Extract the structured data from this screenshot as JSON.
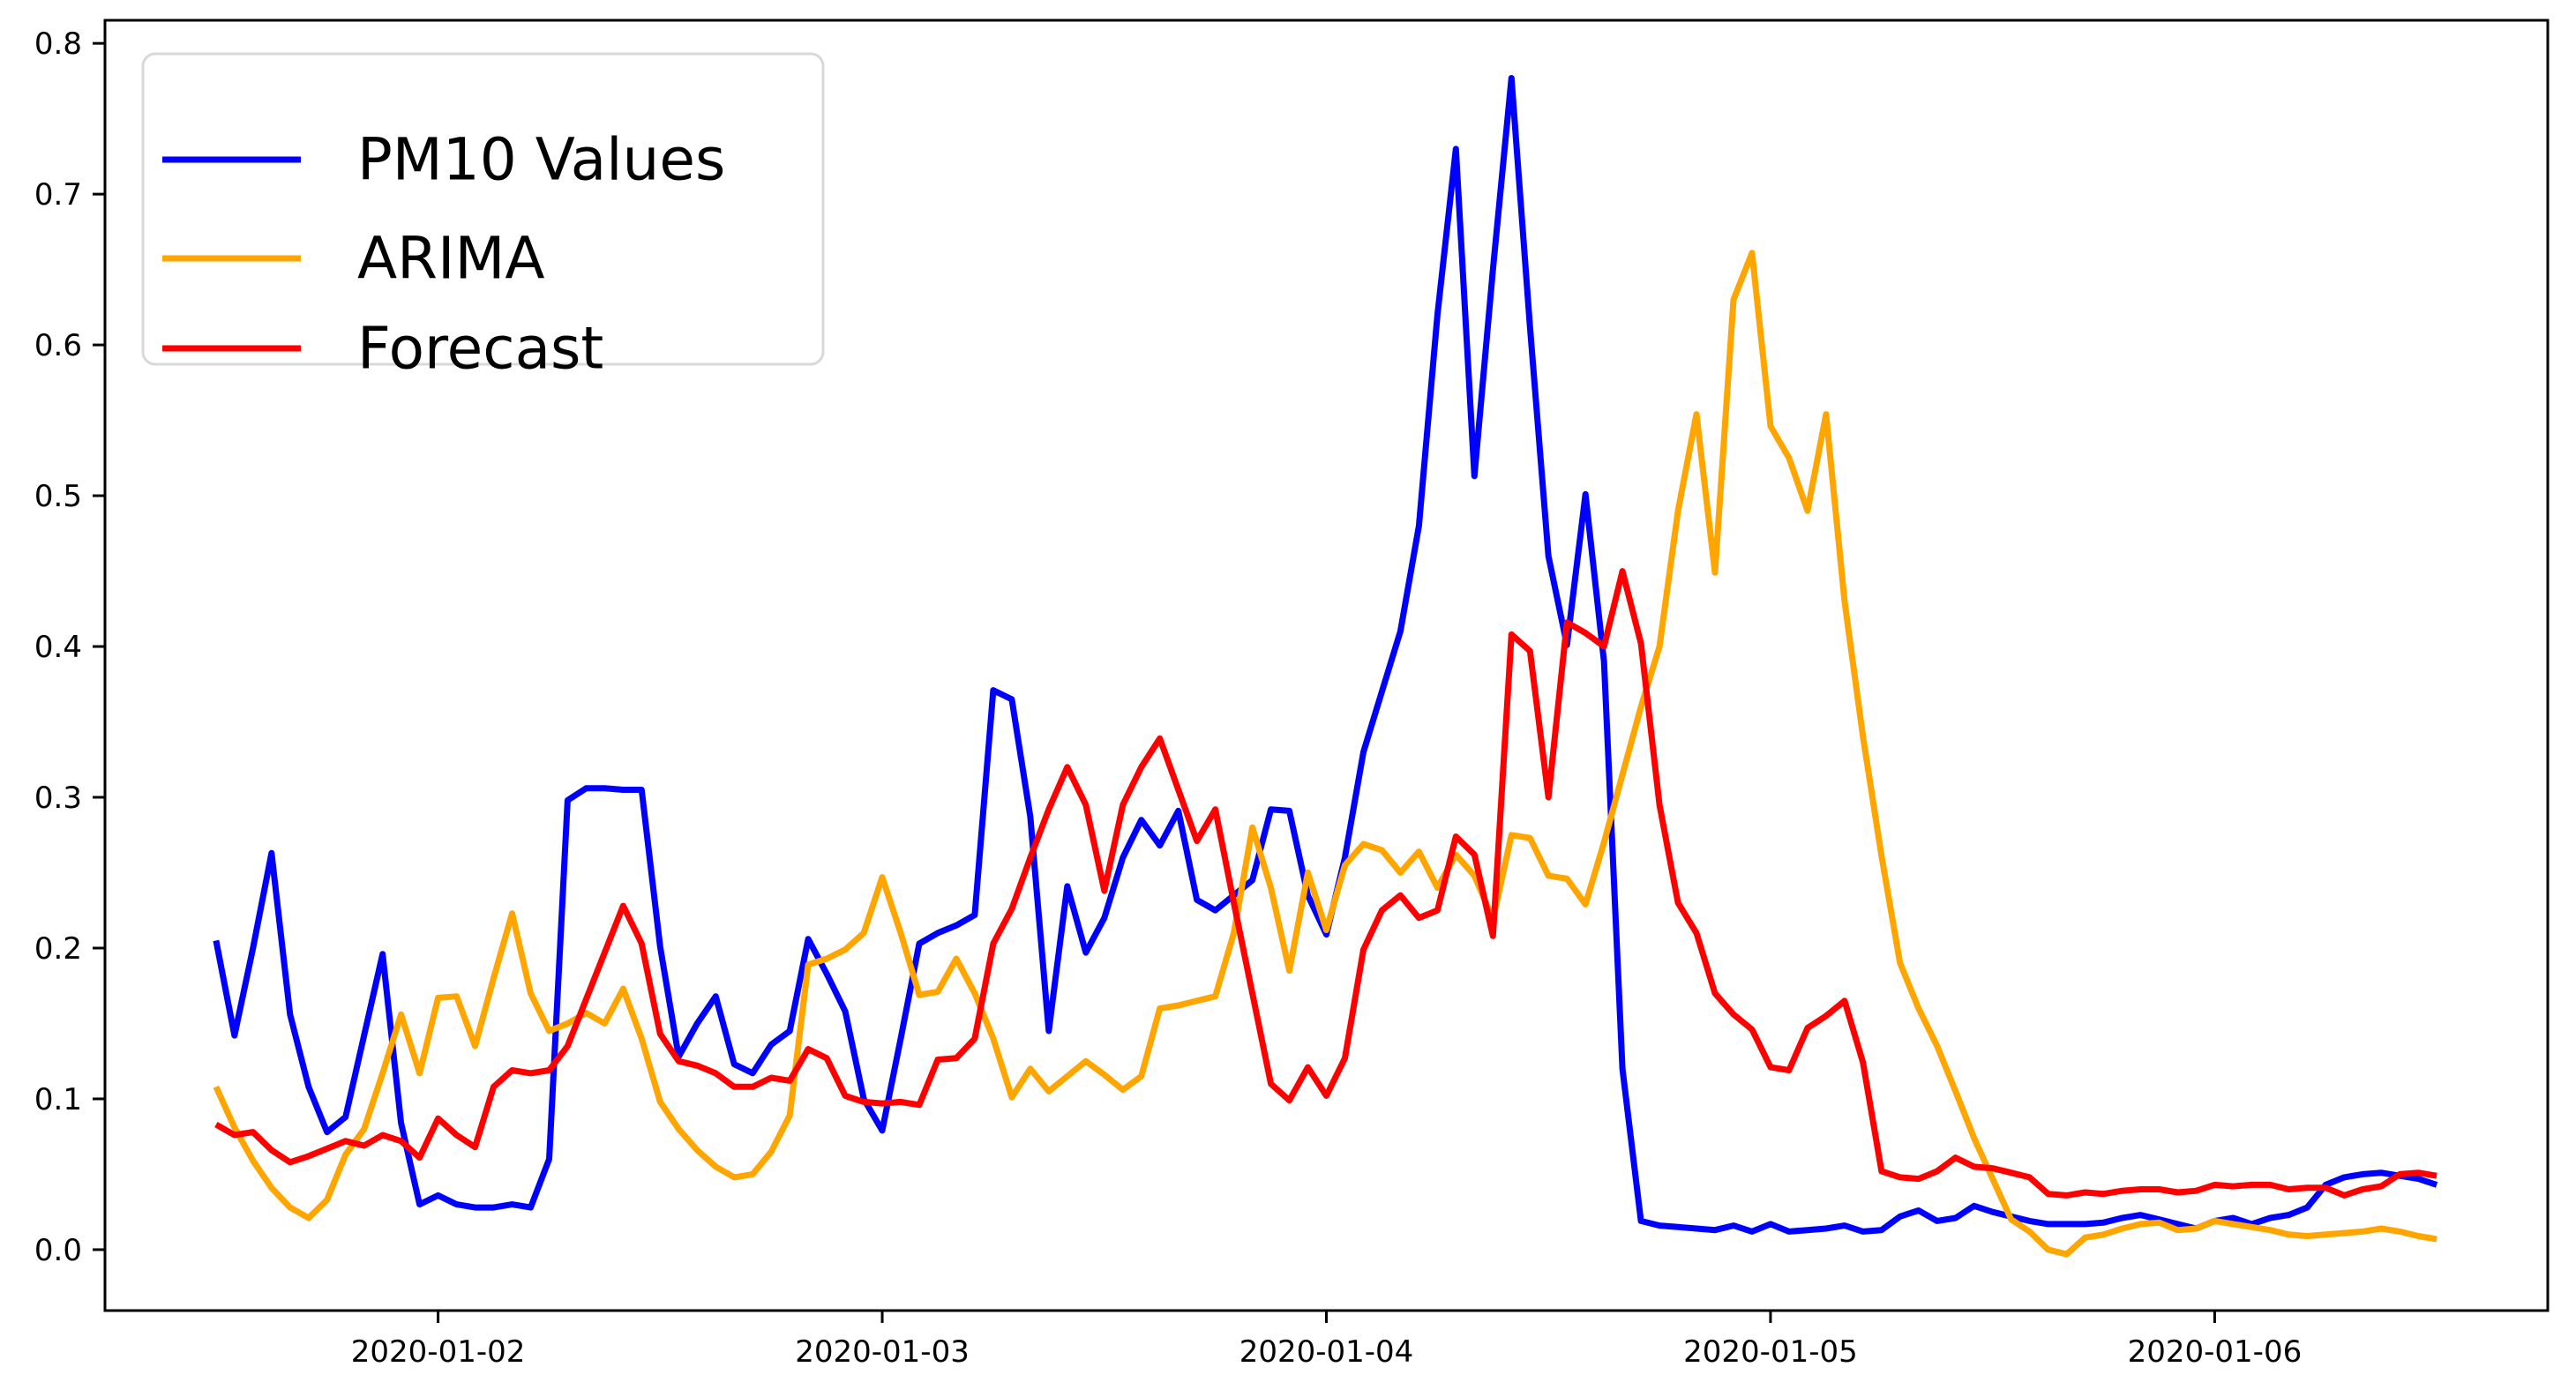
{
  "figure": {
    "background": "#ffffff",
    "spine_color": "#000000"
  },
  "chart_data": {
    "type": "line",
    "title": "",
    "xlabel": "",
    "ylabel": "",
    "grid": false,
    "x_axis": {
      "unit": "hours since 2020-01-01 12:00",
      "step_hours": 1,
      "domain_hours": [
        -6,
        126
      ],
      "ticks": [
        {
          "hours": 12,
          "label": "2020-01-02"
        },
        {
          "hours": 36,
          "label": "2020-01-03"
        },
        {
          "hours": 60,
          "label": "2020-01-04"
        },
        {
          "hours": 84,
          "label": "2020-01-05"
        },
        {
          "hours": 108,
          "label": "2020-01-06"
        }
      ]
    },
    "y_axis": {
      "domain": [
        -0.0404,
        0.8153
      ],
      "ticks": [
        {
          "value": 0.0,
          "label": "0.0"
        },
        {
          "value": 0.1,
          "label": "0.1"
        },
        {
          "value": 0.2,
          "label": "0.2"
        },
        {
          "value": 0.3,
          "label": "0.3"
        },
        {
          "value": 0.4,
          "label": "0.4"
        },
        {
          "value": 0.5,
          "label": "0.5"
        },
        {
          "value": 0.6,
          "label": "0.6"
        },
        {
          "value": 0.7,
          "label": "0.7"
        },
        {
          "value": 0.8,
          "label": "0.8"
        }
      ]
    },
    "legend": {
      "position": "upper-left",
      "border_color": "#d8d8d8",
      "background": "#ffffff",
      "entries": [
        {
          "label": "PM10 Values",
          "color": "#0000ff"
        },
        {
          "label": "ARIMA",
          "color": "#ffa500"
        },
        {
          "label": "Forecast",
          "color": "#ff0000"
        }
      ]
    },
    "series": [
      {
        "name": "PM10 Values",
        "color": "#0000ff",
        "values": [
          0.205,
          0.142,
          0.2,
          0.263,
          0.156,
          0.108,
          0.078,
          0.088,
          0.142,
          0.196,
          0.084,
          0.03,
          0.036,
          0.03,
          0.028,
          0.028,
          0.03,
          0.028,
          0.06,
          0.298,
          0.306,
          0.306,
          0.305,
          0.305,
          0.201,
          0.128,
          0.15,
          0.168,
          0.123,
          0.117,
          0.136,
          0.145,
          0.206,
          0.183,
          0.158,
          0.1,
          0.079,
          0.14,
          0.203,
          0.21,
          0.215,
          0.222,
          0.371,
          0.365,
          0.287,
          0.145,
          0.241,
          0.197,
          0.22,
          0.26,
          0.285,
          0.268,
          0.291,
          0.232,
          0.225,
          0.235,
          0.245,
          0.292,
          0.291,
          0.235,
          0.209,
          0.26,
          0.33,
          0.37,
          0.41,
          0.48,
          0.62,
          0.73,
          0.513,
          0.65,
          0.777,
          0.612,
          0.46,
          0.401,
          0.501,
          0.39,
          0.12,
          0.019,
          0.016,
          0.015,
          0.014,
          0.013,
          0.016,
          0.012,
          0.017,
          0.012,
          0.013,
          0.014,
          0.016,
          0.012,
          0.013,
          0.022,
          0.026,
          0.019,
          0.021,
          0.029,
          0.025,
          0.022,
          0.019,
          0.017,
          0.017,
          0.017,
          0.018,
          0.021,
          0.023,
          0.02,
          0.017,
          0.014,
          0.019,
          0.021,
          0.017,
          0.021,
          0.023,
          0.028,
          0.043,
          0.048,
          0.05,
          0.051,
          0.049,
          0.047,
          0.043
        ]
      },
      {
        "name": "ARIMA",
        "color": "#ffa500",
        "values": [
          0.108,
          0.081,
          0.059,
          0.041,
          0.028,
          0.021,
          0.033,
          0.063,
          0.08,
          0.117,
          0.156,
          0.117,
          0.167,
          0.168,
          0.135,
          0.18,
          0.223,
          0.17,
          0.145,
          0.15,
          0.157,
          0.15,
          0.173,
          0.14,
          0.098,
          0.08,
          0.066,
          0.055,
          0.048,
          0.05,
          0.065,
          0.089,
          0.189,
          0.193,
          0.199,
          0.21,
          0.247,
          0.21,
          0.169,
          0.171,
          0.193,
          0.17,
          0.14,
          0.101,
          0.12,
          0.105,
          0.115,
          0.125,
          0.116,
          0.106,
          0.115,
          0.16,
          0.162,
          0.165,
          0.168,
          0.21,
          0.28,
          0.24,
          0.185,
          0.25,
          0.212,
          0.255,
          0.269,
          0.265,
          0.25,
          0.264,
          0.24,
          0.262,
          0.248,
          0.219,
          0.275,
          0.273,
          0.248,
          0.246,
          0.229,
          0.27,
          0.315,
          0.36,
          0.4,
          0.49,
          0.554,
          0.449,
          0.63,
          0.661,
          0.546,
          0.525,
          0.49,
          0.554,
          0.43,
          0.34,
          0.261,
          0.19,
          0.16,
          0.135,
          0.105,
          0.074,
          0.047,
          0.02,
          0.012,
          0.0,
          -0.003,
          0.008,
          0.01,
          0.014,
          0.017,
          0.018,
          0.013,
          0.014,
          0.019,
          0.017,
          0.015,
          0.013,
          0.01,
          0.009,
          0.01,
          0.011,
          0.012,
          0.014,
          0.012,
          0.009,
          0.007
        ]
      },
      {
        "name": "Forecast",
        "color": "#ff0000",
        "values": [
          0.083,
          0.076,
          0.078,
          0.066,
          0.058,
          0.062,
          0.067,
          0.072,
          0.069,
          0.076,
          0.072,
          0.061,
          0.087,
          0.076,
          0.068,
          0.108,
          0.119,
          0.117,
          0.119,
          0.135,
          0.166,
          0.197,
          0.228,
          0.203,
          0.143,
          0.125,
          0.122,
          0.117,
          0.108,
          0.108,
          0.114,
          0.112,
          0.133,
          0.127,
          0.102,
          0.098,
          0.097,
          0.098,
          0.096,
          0.126,
          0.127,
          0.14,
          0.203,
          0.226,
          0.26,
          0.292,
          0.32,
          0.295,
          0.238,
          0.295,
          0.32,
          0.339,
          0.305,
          0.271,
          0.292,
          0.23,
          0.17,
          0.11,
          0.099,
          0.121,
          0.102,
          0.127,
          0.199,
          0.225,
          0.235,
          0.22,
          0.225,
          0.274,
          0.262,
          0.208,
          0.408,
          0.397,
          0.3,
          0.416,
          0.409,
          0.4,
          0.45,
          0.402,
          0.295,
          0.23,
          0.21,
          0.17,
          0.156,
          0.146,
          0.121,
          0.119,
          0.147,
          0.155,
          0.165,
          0.124,
          0.052,
          0.048,
          0.047,
          0.052,
          0.061,
          0.055,
          0.054,
          0.051,
          0.048,
          0.037,
          0.036,
          0.038,
          0.037,
          0.039,
          0.04,
          0.04,
          0.038,
          0.039,
          0.043,
          0.042,
          0.043,
          0.043,
          0.04,
          0.041,
          0.041,
          0.036,
          0.04,
          0.042,
          0.05,
          0.051,
          0.049
        ]
      }
    ]
  }
}
